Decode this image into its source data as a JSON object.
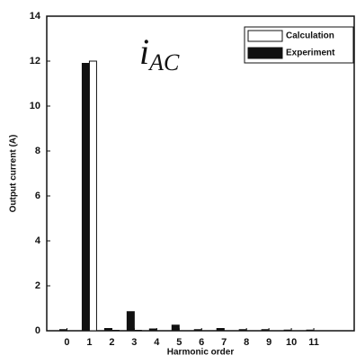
{
  "chart_data": {
    "type": "bar",
    "annotation": {
      "main": "i",
      "sub": "AC"
    },
    "x_label": "Harmonic order",
    "y_label": "Output current (A)",
    "x": [
      0,
      1,
      2,
      3,
      4,
      5,
      6,
      7,
      8,
      9,
      10,
      11
    ],
    "xlim": [
      -0.9,
      12.8
    ],
    "series": [
      {
        "name": "Calculation",
        "color": "#ffffff",
        "values": [
          0,
          12,
          0.02,
          0.02,
          0,
          0,
          0,
          0,
          0,
          0,
          0,
          0
        ]
      },
      {
        "name": "Experiment",
        "color": "#111111",
        "values": [
          0.05,
          11.9,
          0.1,
          0.85,
          0.08,
          0.25,
          0.05,
          0.1,
          0.05,
          0.05,
          0.03,
          0.03
        ]
      }
    ],
    "ylim": [
      0,
      14
    ],
    "yticks": [
      0,
      2,
      4,
      6,
      8,
      10,
      12,
      14
    ],
    "legend": "upper-right",
    "grid": false
  }
}
